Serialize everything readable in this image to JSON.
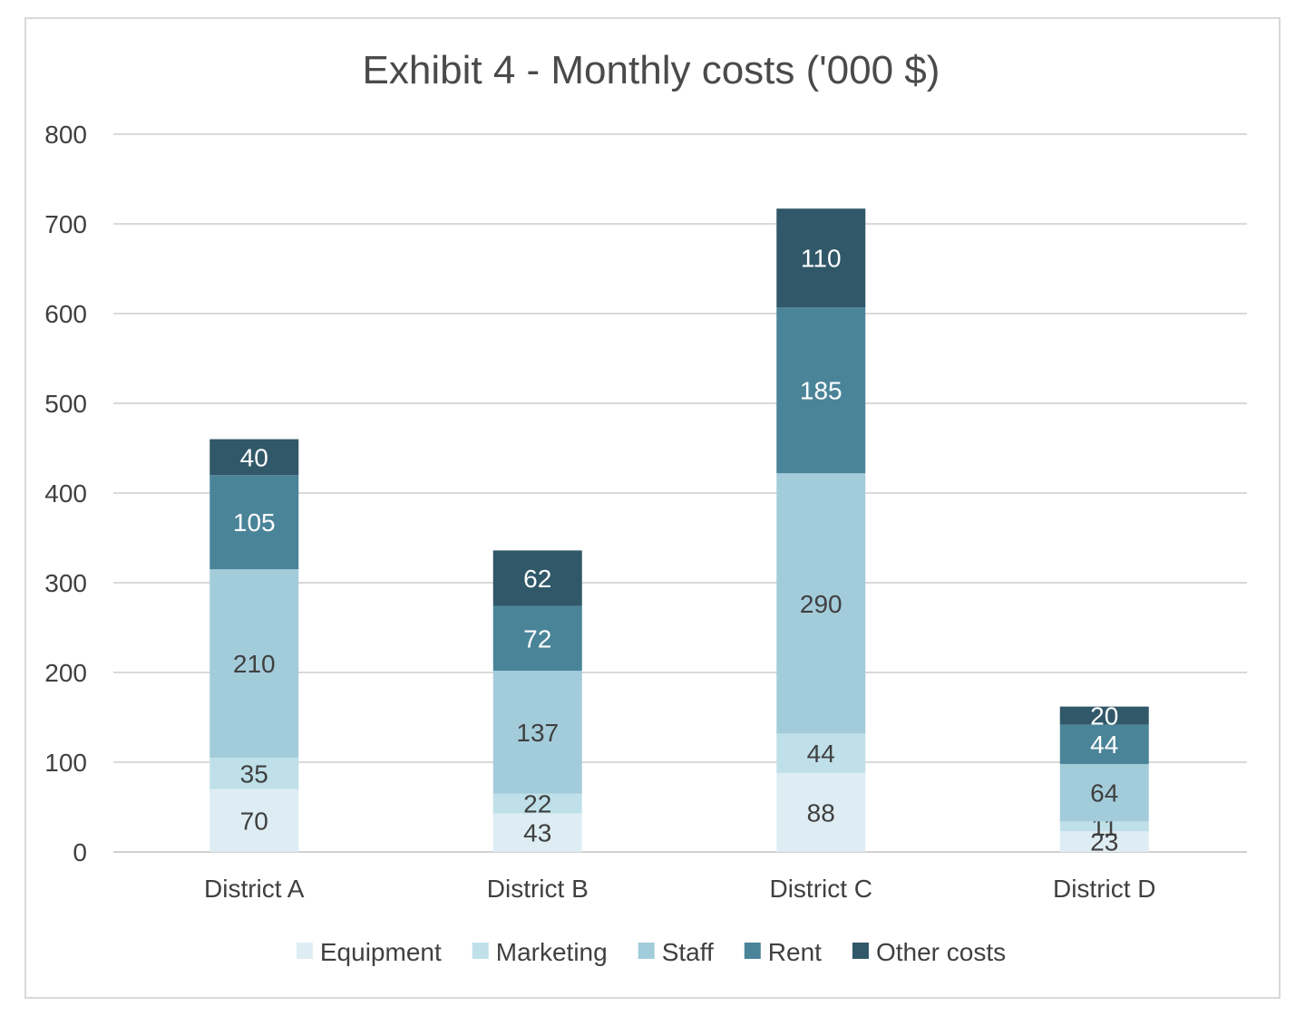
{
  "chart_data": {
    "type": "bar",
    "stacked": true,
    "title": "Exhibit 4 - Monthly costs ('000 $)",
    "xlabel": "",
    "ylabel": "",
    "categories": [
      "District A",
      "District B",
      "District C",
      "District D"
    ],
    "series": [
      {
        "name": "Equipment",
        "color": "#deedf3",
        "label_color": "#404040",
        "values": [
          70,
          43,
          88,
          23
        ]
      },
      {
        "name": "Marketing",
        "color": "#bfe0e9",
        "label_color": "#404040",
        "values": [
          35,
          22,
          44,
          11
        ]
      },
      {
        "name": "Staff",
        "color": "#a3ccdb",
        "label_color": "#404040",
        "values": [
          210,
          137,
          290,
          64
        ]
      },
      {
        "name": "Rent",
        "color": "#4a8499",
        "label_color": "#ffffff",
        "values": [
          105,
          72,
          185,
          44
        ]
      },
      {
        "name": "Other costs",
        "color": "#305868",
        "label_color": "#ffffff",
        "values": [
          40,
          62,
          110,
          20
        ]
      }
    ],
    "ylim": [
      0,
      800
    ],
    "yticks": [
      0,
      100,
      200,
      300,
      400,
      500,
      600,
      700,
      800
    ],
    "grid": true,
    "legend": "bottom"
  }
}
